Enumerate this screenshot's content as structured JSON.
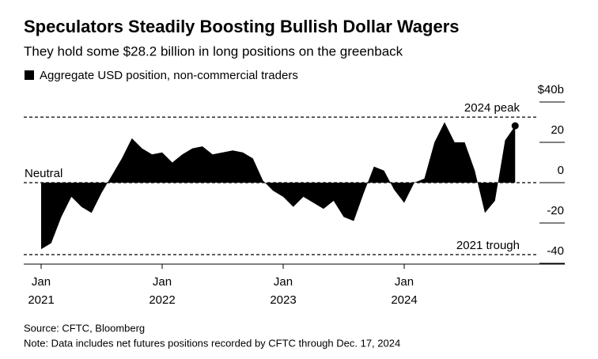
{
  "chart_data": {
    "type": "area",
    "title": "Speculators Steadily Boosting Bullish Dollar Wagers",
    "subtitle": "They hold some $28.2 billion in long positions on the greenback",
    "source": "Source: CFTC, Bloomberg",
    "note": "Note: Data includes net futures positions recorded by CFTC through Dec. 17, 2024",
    "x": [
      "2021-01",
      "2021-02",
      "2021-03",
      "2021-04",
      "2021-05",
      "2021-06",
      "2021-07",
      "2021-08",
      "2021-09",
      "2021-10",
      "2021-11",
      "2021-12",
      "2022-01",
      "2022-02",
      "2022-03",
      "2022-04",
      "2022-05",
      "2022-06",
      "2022-07",
      "2022-08",
      "2022-09",
      "2022-10",
      "2022-11",
      "2022-12",
      "2023-01",
      "2023-02",
      "2023-03",
      "2023-04",
      "2023-05",
      "2023-06",
      "2023-07",
      "2023-08",
      "2023-09",
      "2023-10",
      "2023-11",
      "2023-12",
      "2024-01",
      "2024-02",
      "2024-03",
      "2024-04",
      "2024-05",
      "2024-06",
      "2024-07",
      "2024-08",
      "2024-09",
      "2024-10",
      "2024-11",
      "2024-12"
    ],
    "series": [
      {
        "name": "Aggregate USD position, non-commercial traders",
        "color": "#000000",
        "values": [
          -33,
          -30,
          -17,
          -7,
          -12,
          -15,
          -5,
          3.5,
          12,
          22,
          17,
          14,
          15,
          10,
          14,
          17,
          18,
          14,
          15,
          16,
          15,
          12,
          1,
          -4,
          -7,
          -12,
          -7,
          -10,
          -13,
          -9,
          -17,
          -19,
          -5,
          8,
          6,
          -3.5,
          -10,
          0,
          2,
          20,
          30,
          20,
          20,
          6,
          -15,
          -9,
          21,
          28.2
        ]
      }
    ],
    "ylim": [
      -40,
      40
    ],
    "yticks": [
      {
        "value": 40,
        "label": "$40b"
      },
      20,
      0,
      -20,
      -40
    ],
    "xticks": [
      {
        "value": "2021-01",
        "label": [
          "Jan",
          "2021"
        ]
      },
      {
        "value": "2022-01",
        "label": [
          "Jan",
          "2022"
        ]
      },
      {
        "value": "2023-01",
        "label": [
          "Jan",
          "2023"
        ]
      },
      {
        "value": "2024-01",
        "label": [
          "Jan",
          "2024"
        ]
      }
    ],
    "reference_lines": [
      {
        "label": "2024 peak",
        "value": 32.5
      },
      {
        "label": "Neutral",
        "value": 0
      },
      {
        "label": "2021 trough",
        "value": -35.7
      }
    ]
  }
}
